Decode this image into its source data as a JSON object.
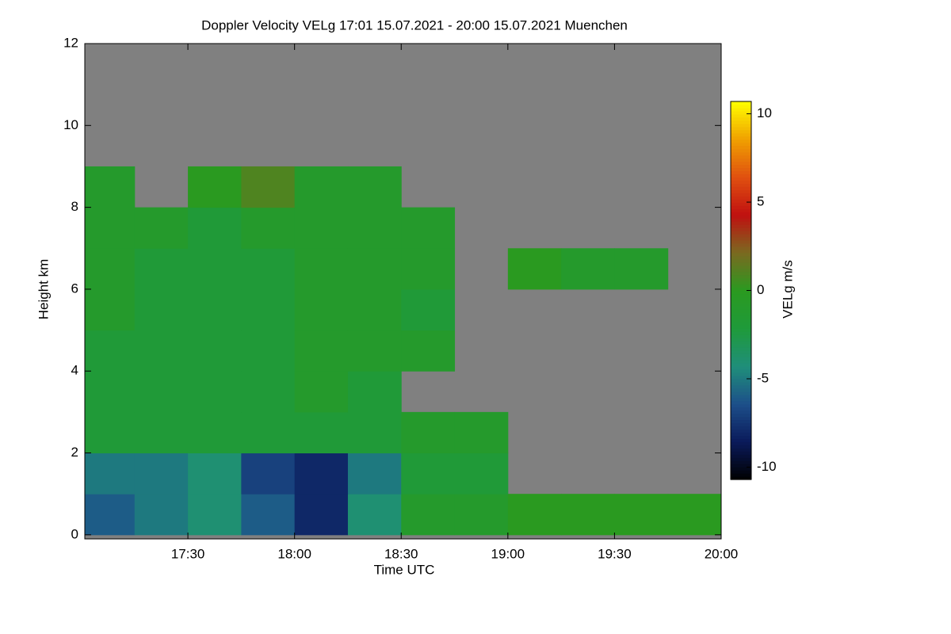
{
  "chart_data": {
    "type": "heatmap",
    "title": "Doppler Velocity VELg   17:01 15.07.2021 - 20:00 15.07.2021 Muenchen",
    "x_label": "Time UTC",
    "y_label": "Height km",
    "colorbar_label": "VELg m/s",
    "xlim": [
      17.0167,
      20.0
    ],
    "xticks": [
      {
        "value": 17.5,
        "label": "17:30"
      },
      {
        "value": 18.0,
        "label": "18:00"
      },
      {
        "value": 18.5,
        "label": "18:30"
      },
      {
        "value": 19.0,
        "label": "19:00"
      },
      {
        "value": 19.5,
        "label": "19:30"
      },
      {
        "value": 20.0,
        "label": "20:00"
      }
    ],
    "ylim": [
      -0.1,
      12
    ],
    "yticks": [
      0,
      2,
      4,
      6,
      8,
      10,
      12
    ],
    "zlim": [
      -10.7,
      10.7
    ],
    "zticks": [
      -10,
      -5,
      0,
      5,
      10
    ],
    "colors": [
      "#000000",
      "#0a1a5a",
      "#1d4f8a",
      "#1f8f7a",
      "#1f9a3a",
      "#2a9a20",
      "#7a6a20",
      "#c01010",
      "#e05010",
      "#f0a000",
      "#ffff00"
    ],
    "missing_color": "#808080",
    "x_bins": [
      17.0167,
      17.25,
      17.5,
      17.75,
      18.0,
      18.25,
      18.5,
      18.75,
      19.0,
      19.25,
      19.5,
      19.75,
      20.0
    ],
    "y_bins": [
      0,
      1,
      2,
      3,
      4,
      5,
      6,
      7,
      8,
      9,
      10,
      11,
      12
    ],
    "values": [
      [
        -6,
        -5,
        -4,
        -6,
        -8,
        -4,
        -1,
        -1,
        0,
        0,
        0,
        0
      ],
      [
        -5,
        -5,
        -4,
        -7,
        -8,
        -5,
        -2,
        -2,
        null,
        null,
        null,
        null
      ],
      [
        -2,
        -2,
        -2,
        -2,
        -2,
        -2,
        -1,
        -1,
        null,
        null,
        null,
        null
      ],
      [
        -2,
        -2,
        -2,
        -2,
        -1,
        -2,
        null,
        null,
        null,
        null,
        null,
        null
      ],
      [
        -2,
        -2,
        -2,
        -2,
        -1,
        -1,
        -1,
        null,
        null,
        null,
        null,
        null
      ],
      [
        -1,
        -2,
        -2,
        -2,
        -1,
        -1,
        -2,
        null,
        null,
        null,
        null,
        null
      ],
      [
        -1,
        -2,
        -2,
        -2,
        -1,
        -1,
        -1,
        null,
        0,
        -1,
        -1,
        null
      ],
      [
        -1,
        -1,
        -2,
        -1,
        -1,
        -1,
        -1,
        null,
        null,
        null,
        null,
        null
      ],
      [
        -1,
        null,
        0,
        1,
        -1,
        -1,
        null,
        null,
        null,
        null,
        null,
        null
      ],
      [
        null,
        null,
        null,
        null,
        null,
        null,
        null,
        null,
        null,
        null,
        null,
        null
      ],
      [
        null,
        null,
        null,
        null,
        null,
        null,
        null,
        null,
        null,
        null,
        null,
        null
      ],
      [
        null,
        null,
        null,
        null,
        null,
        null,
        null,
        null,
        null,
        null,
        null,
        null
      ]
    ]
  }
}
